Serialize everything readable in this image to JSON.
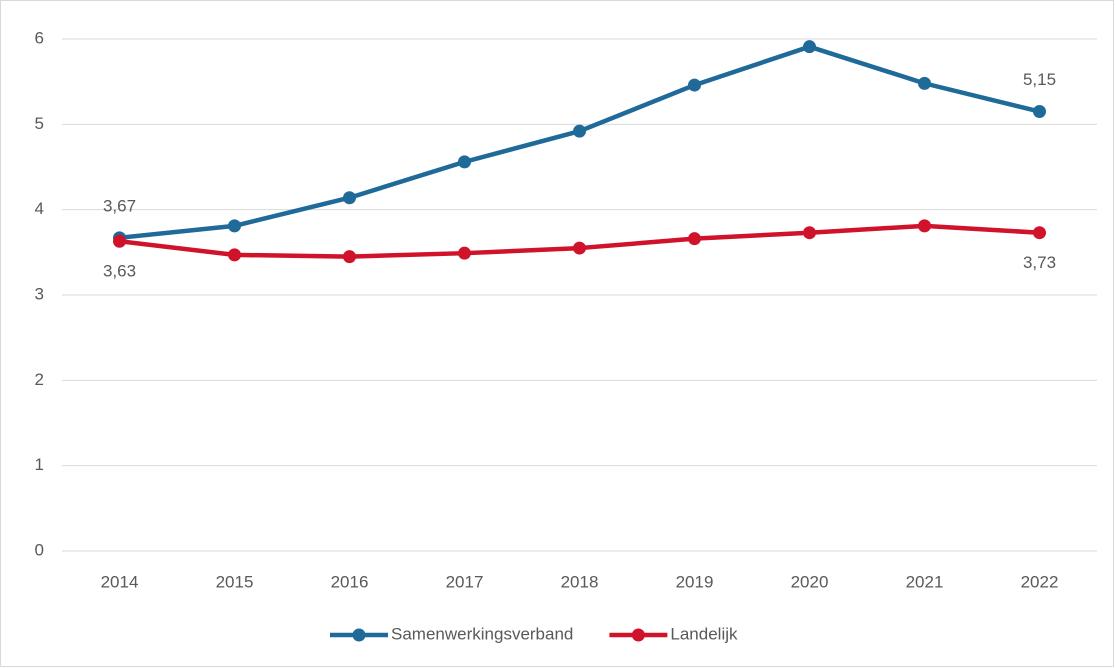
{
  "chart_data": {
    "type": "line",
    "categories": [
      "2014",
      "2015",
      "2016",
      "2017",
      "2018",
      "2019",
      "2020",
      "2021",
      "2022"
    ],
    "series": [
      {
        "name": "Samenwerkingsverband",
        "color": "#1f6a99",
        "values": [
          3.67,
          3.81,
          4.14,
          4.56,
          4.92,
          5.46,
          5.91,
          5.48,
          5.15
        ],
        "value_labels": [
          "3,67",
          null,
          null,
          null,
          null,
          null,
          null,
          null,
          "5,15"
        ]
      },
      {
        "name": "Landelijk",
        "color": "#d0132a",
        "values": [
          3.63,
          3.47,
          3.45,
          3.49,
          3.55,
          3.66,
          3.73,
          3.81,
          3.73
        ],
        "value_labels": [
          "3,63",
          null,
          null,
          null,
          null,
          null,
          null,
          null,
          "3,73"
        ]
      }
    ],
    "ylim": [
      0,
      6
    ],
    "yticks": [
      0,
      1,
      2,
      3,
      4,
      5,
      6
    ],
    "grid": true,
    "legend": "bottom"
  }
}
